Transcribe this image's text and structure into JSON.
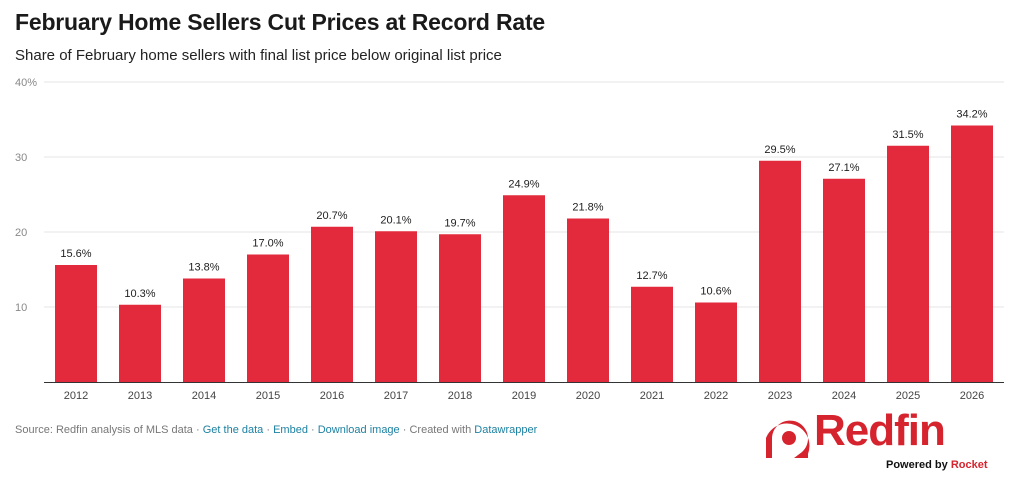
{
  "header": {
    "title": "February Home Sellers Cut Prices at Record Rate",
    "subtitle": "Share of February home sellers with final list price below original list price"
  },
  "chart_data": {
    "type": "bar",
    "title": "February Home Sellers Cut Prices at Record Rate",
    "subtitle": "Share of February home sellers with final list price below original list price",
    "xlabel": "",
    "ylabel": "",
    "categories": [
      "2012",
      "2013",
      "2014",
      "2015",
      "2016",
      "2017",
      "2018",
      "2019",
      "2020",
      "2021",
      "2022",
      "2023",
      "2024",
      "2025",
      "2026"
    ],
    "values": [
      15.6,
      10.3,
      13.8,
      17.0,
      20.7,
      20.1,
      19.7,
      24.9,
      21.8,
      12.7,
      10.6,
      29.5,
      27.1,
      31.5,
      34.2
    ],
    "value_labels": [
      "15.6%",
      "10.3%",
      "13.8%",
      "17.0%",
      "20.7%",
      "20.1%",
      "19.7%",
      "24.9%",
      "21.8%",
      "12.7%",
      "10.6%",
      "29.5%",
      "27.1%",
      "31.5%",
      "34.2%"
    ],
    "ylim": [
      0,
      40
    ],
    "y_ticks": [
      {
        "value": 10,
        "label": "10"
      },
      {
        "value": 20,
        "label": "20"
      },
      {
        "value": 30,
        "label": "30"
      },
      {
        "value": 40,
        "label": "40%"
      }
    ],
    "grid": true,
    "bar_color": "#e32a3c"
  },
  "footer": {
    "source": "Source: Redfin analysis of MLS data",
    "get_data": "Get the data",
    "embed": "Embed",
    "download": "Download image",
    "created": "Created with",
    "datawrapper": "Datawrapper",
    "separator": "·"
  },
  "logo": {
    "word": "Redfin",
    "powered_by": "Powered by",
    "rocket": "Rocket",
    "brand_color": "#d6242e"
  }
}
